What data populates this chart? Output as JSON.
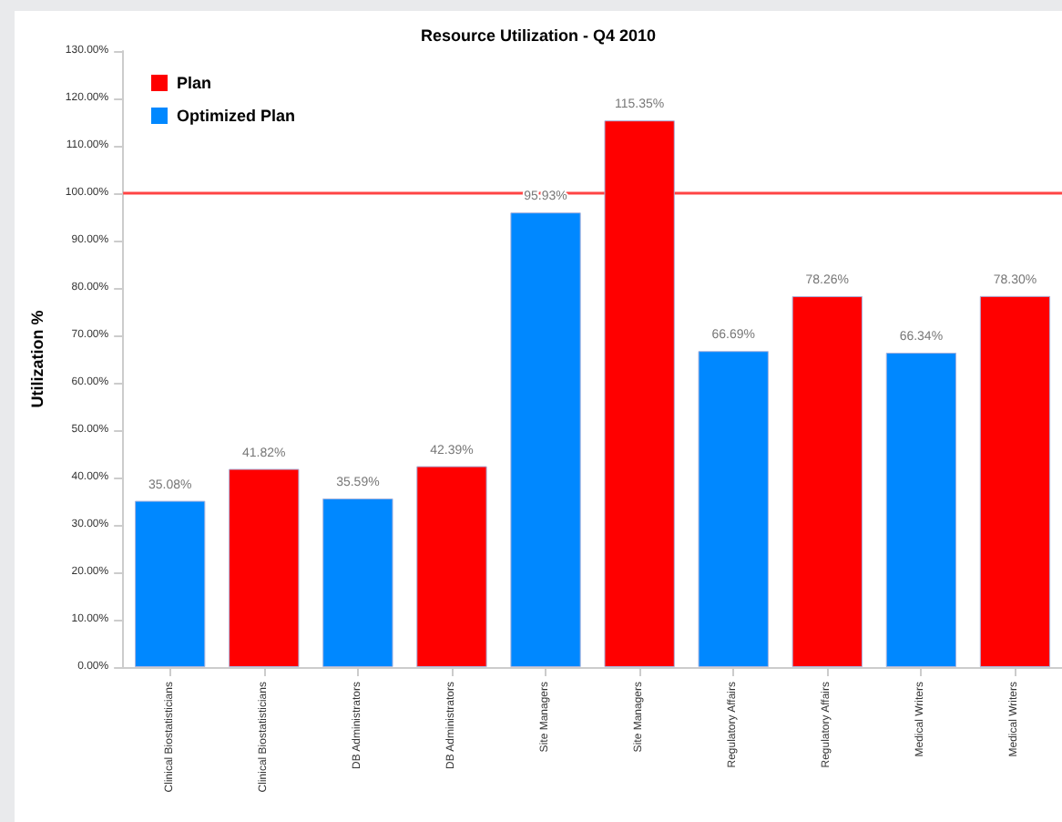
{
  "chart_data": {
    "type": "bar",
    "title": "Resource Utilization - Q4 2010",
    "ylabel": "Utilization %",
    "categories": [
      "Clinical Biostatisticians",
      "Clinical Biostatisticians",
      "DB Administrators",
      "DB Administrators",
      "Site Managers",
      "Site Managers",
      "Regulatory Affairs",
      "Regulatory Affairs",
      "Medical Writers",
      "Medical Writers"
    ],
    "stacked": true,
    "series": [
      {
        "name": "Plan",
        "color": "#ff0000",
        "values": [
          null,
          41.82,
          null,
          42.39,
          null,
          115.35,
          null,
          78.26,
          null,
          78.3
        ],
        "value_labels": [
          null,
          "41.82%",
          null,
          "42.39%",
          null,
          "115.35%",
          null,
          "78.26%",
          null,
          "78.30%"
        ]
      },
      {
        "name": "Optimized Plan",
        "color": "#0088ff",
        "values": [
          35.08,
          null,
          35.59,
          null,
          95.93,
          null,
          66.69,
          null,
          66.34,
          null
        ],
        "value_labels": [
          "35.08%",
          null,
          "35.59%",
          null,
          "95.93%",
          null,
          "66.69%",
          null,
          "66.34%",
          null
        ]
      }
    ],
    "ylim": [
      0,
      130
    ],
    "yticks": [
      {
        "value": 0,
        "label": "0.00%"
      },
      {
        "value": 10,
        "label": "10.00%"
      },
      {
        "value": 20,
        "label": "20.00%"
      },
      {
        "value": 30,
        "label": "30.00%"
      },
      {
        "value": 40,
        "label": "40.00%"
      },
      {
        "value": 50,
        "label": "50.00%"
      },
      {
        "value": 60,
        "label": "60.00%"
      },
      {
        "value": 70,
        "label": "70.00%"
      },
      {
        "value": 80,
        "label": "80.00%"
      },
      {
        "value": 90,
        "label": "90.00%"
      },
      {
        "value": 100,
        "label": "100.00%"
      },
      {
        "value": 110,
        "label": "110.00%"
      },
      {
        "value": 120,
        "label": "120.00%"
      },
      {
        "value": 130,
        "label": "130.00%"
      }
    ],
    "ref_lines": [
      {
        "axis": "y",
        "value": 100,
        "color": "#ff4444"
      }
    ],
    "legend": "top left",
    "grid": false
  }
}
